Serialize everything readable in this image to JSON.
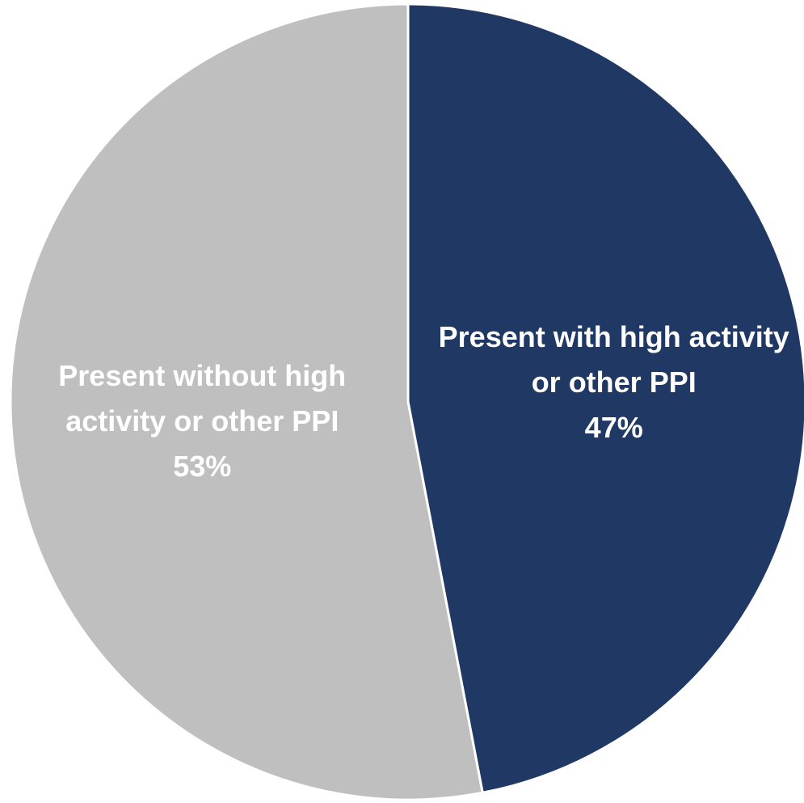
{
  "chart_data": {
    "type": "pie",
    "categories": [
      "Present with high activity or other PPI",
      "Present without high activity or other PPI"
    ],
    "values": [
      47,
      53
    ],
    "value_labels": [
      "47%",
      "53%"
    ],
    "colors": [
      "#203864",
      "#bfbfbf"
    ]
  }
}
